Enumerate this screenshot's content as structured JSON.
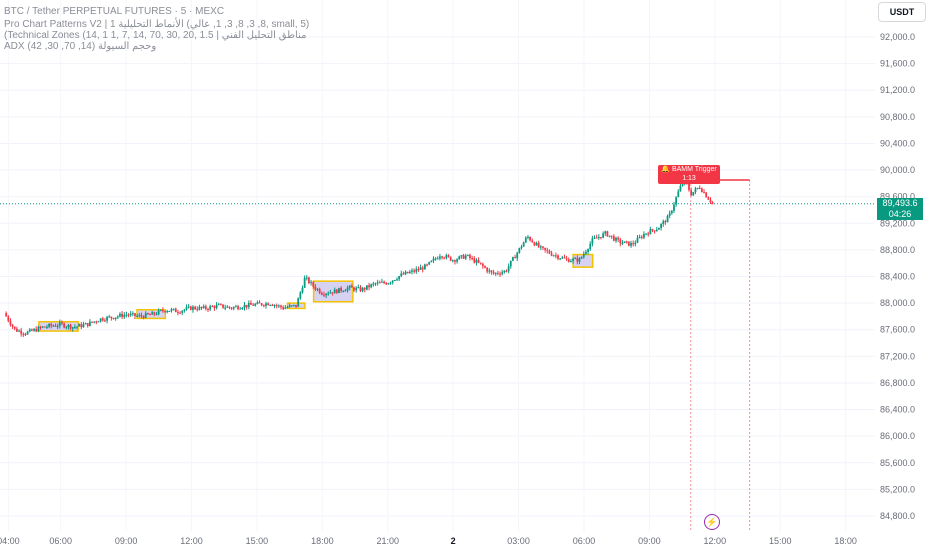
{
  "legend": {
    "symbol_line": "BTC / Tether PERPETUAL FUTURES · 5 · MEXC",
    "indicator1": "Pro Chart Patterns V2 | 1  الأنماط التحليلية (8, 3, 8, 3, 1, عالي, small, 5)",
    "indicator2": "(Technical Zones (14, 1 1, 7, 14, 70, 30, 20, 1.5 | مناطق التحليل الفني",
    "indicator3": "ADX وحجم السيولة (14, 70, 30, 42)"
  },
  "currency_button": "USDT",
  "last_price": {
    "value": "89,493.6",
    "countdown": "04:26",
    "color": "#089981"
  },
  "trigger_label": {
    "icon": "bell-icon",
    "text": "BAMM Trigger",
    "subtext": "1:13",
    "color": "#f23645"
  },
  "colors": {
    "up": "#089981",
    "down": "#f23645",
    "zone_border": "#f5c200",
    "zone_fill": "#c9c2ee",
    "last_price_line": "#089981"
  },
  "chart_data": {
    "type": "candlestick",
    "title": "BTC / Tether PERPETUAL FUTURES · 5 · MEXC",
    "ylim": [
      84600,
      92400
    ],
    "y_ticks": [
      "92,000.0",
      "91,600.0",
      "91,200.0",
      "90,800.0",
      "90,400.0",
      "90,000.0",
      "89,600.0",
      "89,200.0",
      "88,800.0",
      "88,400.0",
      "88,000.0",
      "87,600.0",
      "87,200.0",
      "86,800.0",
      "86,400.0",
      "86,000.0",
      "85,600.0",
      "85,200.0",
      "84,800.0"
    ],
    "y_tick_values": [
      92000,
      91600,
      91200,
      90800,
      90400,
      90000,
      89600,
      89200,
      88800,
      88400,
      88000,
      87600,
      87200,
      86800,
      86400,
      86000,
      85600,
      85200,
      84800
    ],
    "x_ticks": [
      "04:00",
      "06:00",
      "09:00",
      "12:00",
      "15:00",
      "18:00",
      "21:00",
      "2",
      "03:00",
      "06:00",
      "09:00",
      "12:00",
      "15:00",
      "18:00"
    ],
    "x_tick_pos": [
      0.6,
      3.0,
      6.0,
      9.0,
      12.0,
      15.0,
      18.0,
      21.0,
      24.0,
      27.0,
      30.0,
      33.0,
      36.0,
      39.0
    ],
    "x_range": [
      0.4,
      39.2
    ],
    "close_path": [
      {
        "t": 0.4,
        "p": 87850
      },
      {
        "t": 0.9,
        "p": 87600
      },
      {
        "t": 1.4,
        "p": 87550
      },
      {
        "t": 2.2,
        "p": 87640
      },
      {
        "t": 3.0,
        "p": 87680
      },
      {
        "t": 3.6,
        "p": 87640
      },
      {
        "t": 4.2,
        "p": 87680
      },
      {
        "t": 4.8,
        "p": 87760
      },
      {
        "t": 5.4,
        "p": 87790
      },
      {
        "t": 6.0,
        "p": 87830
      },
      {
        "t": 6.6,
        "p": 87800
      },
      {
        "t": 7.2,
        "p": 87830
      },
      {
        "t": 7.8,
        "p": 87900
      },
      {
        "t": 8.4,
        "p": 87880
      },
      {
        "t": 9.0,
        "p": 87930
      },
      {
        "t": 9.6,
        "p": 87920
      },
      {
        "t": 10.2,
        "p": 87960
      },
      {
        "t": 10.8,
        "p": 87930
      },
      {
        "t": 11.4,
        "p": 87960
      },
      {
        "t": 12.0,
        "p": 87980
      },
      {
        "t": 12.6,
        "p": 88000
      },
      {
        "t": 13.2,
        "p": 87930
      },
      {
        "t": 13.8,
        "p": 87960
      },
      {
        "t": 14.2,
        "p": 88380
      },
      {
        "t": 14.6,
        "p": 88250
      },
      {
        "t": 15.0,
        "p": 88150
      },
      {
        "t": 15.6,
        "p": 88180
      },
      {
        "t": 16.2,
        "p": 88230
      },
      {
        "t": 16.8,
        "p": 88200
      },
      {
        "t": 17.4,
        "p": 88290
      },
      {
        "t": 18.0,
        "p": 88310
      },
      {
        "t": 18.6,
        "p": 88420
      },
      {
        "t": 19.2,
        "p": 88480
      },
      {
        "t": 19.8,
        "p": 88560
      },
      {
        "t": 20.4,
        "p": 88730
      },
      {
        "t": 21.0,
        "p": 88650
      },
      {
        "t": 21.6,
        "p": 88710
      },
      {
        "t": 22.2,
        "p": 88590
      },
      {
        "t": 22.8,
        "p": 88440
      },
      {
        "t": 23.4,
        "p": 88480
      },
      {
        "t": 23.9,
        "p": 88740
      },
      {
        "t": 24.4,
        "p": 89000
      },
      {
        "t": 25.0,
        "p": 88820
      },
      {
        "t": 25.6,
        "p": 88730
      },
      {
        "t": 26.2,
        "p": 88650
      },
      {
        "t": 26.8,
        "p": 88650
      },
      {
        "t": 27.4,
        "p": 88950
      },
      {
        "t": 28.0,
        "p": 89050
      },
      {
        "t": 28.6,
        "p": 88920
      },
      {
        "t": 29.2,
        "p": 88880
      },
      {
        "t": 29.8,
        "p": 89050
      },
      {
        "t": 30.4,
        "p": 89130
      },
      {
        "t": 30.9,
        "p": 89300
      },
      {
        "t": 31.3,
        "p": 89650
      },
      {
        "t": 31.6,
        "p": 89880
      },
      {
        "t": 31.9,
        "p": 89640
      },
      {
        "t": 32.3,
        "p": 89750
      },
      {
        "t": 32.6,
        "p": 89620
      },
      {
        "t": 32.9,
        "p": 89493.6
      }
    ],
    "zones": [
      {
        "t_start": 2.0,
        "t_end": 3.8,
        "low": 87580,
        "high": 87720
      },
      {
        "t_start": 6.5,
        "t_end": 7.8,
        "low": 87770,
        "high": 87900
      },
      {
        "t_start": 13.4,
        "t_end": 14.2,
        "low": 87920,
        "high": 88000
      },
      {
        "t_start": 14.6,
        "t_end": 16.4,
        "low": 88020,
        "high": 88330
      },
      {
        "t_start": 26.5,
        "t_end": 27.4,
        "low": 88540,
        "high": 88730
      }
    ],
    "last_price": 89493.6,
    "target_level": 89850,
    "target_t_end": 34.6,
    "target_vlines_t": [
      31.9,
      34.6
    ]
  }
}
